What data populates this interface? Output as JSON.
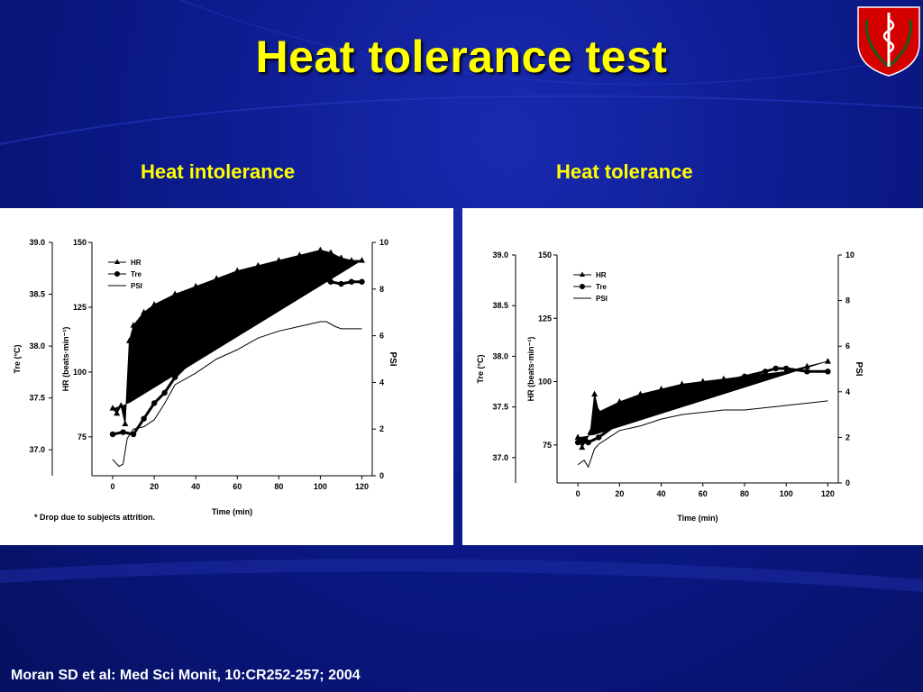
{
  "slide": {
    "title": "Heat tolerance test",
    "citation": "Moran SD et al: Med Sci Monit, 10:CR252-257; 2004",
    "colors": {
      "title": "#ffff00",
      "background": "#0c1a8c",
      "logo_red": "#d40000"
    }
  },
  "panels": {
    "left": {
      "heading": "Heat intolerance"
    },
    "right": {
      "heading": "Heat tolerance"
    }
  },
  "chart_data": [
    {
      "type": "line",
      "title": "Heat intolerance",
      "xlabel": "Time (min)",
      "xticks": [
        "0",
        "20",
        "40",
        "60",
        "80",
        "100",
        "120"
      ],
      "xlim": [
        -10,
        125
      ],
      "y_tre": {
        "label": "Tre (°C)",
        "ticks": [
          "37.0",
          "37.5",
          "38.0",
          "38.5",
          "39.0"
        ],
        "lim": [
          36.75,
          39.0
        ]
      },
      "y_hr": {
        "label": "HR (beats·min⁻¹)",
        "ticks": [
          "75",
          "100",
          "125",
          "150"
        ],
        "lim": [
          60,
          150
        ]
      },
      "y_psi": {
        "label": "PSI",
        "ticks": [
          "0",
          "2",
          "4",
          "6",
          "8",
          "10"
        ],
        "lim": [
          0,
          10
        ]
      },
      "legend": [
        "HR",
        "Tre",
        "PSI"
      ],
      "legend_position": "top-left",
      "annotations": [
        {
          "text": "*",
          "x": 107
        }
      ],
      "footnote": "* Drop due to subjects attrition.",
      "series": [
        {
          "name": "HR",
          "axis": "hr",
          "marker": "triangle",
          "x": [
            0,
            2,
            4,
            6,
            8,
            10,
            15,
            20,
            30,
            40,
            50,
            60,
            70,
            80,
            90,
            100,
            105,
            110,
            115,
            120
          ],
          "y": [
            86,
            84,
            87,
            80,
            112,
            118,
            123,
            126,
            130,
            133,
            136,
            139,
            141,
            143,
            145,
            147,
            146,
            144,
            143,
            143
          ]
        },
        {
          "name": "HR_lower_envelope",
          "axis": "hr",
          "fill": true,
          "x": [
            0,
            8,
            120
          ],
          "y": [
            86,
            88,
            143
          ]
        },
        {
          "name": "Tre",
          "axis": "tre",
          "marker": "circle",
          "x": [
            0,
            5,
            10,
            15,
            20,
            25,
            30,
            40,
            50,
            60,
            70,
            80,
            90,
            100,
            105,
            110,
            115,
            120
          ],
          "y": [
            37.15,
            37.17,
            37.15,
            37.3,
            37.45,
            37.55,
            37.7,
            37.9,
            38.05,
            38.2,
            38.35,
            38.5,
            38.6,
            38.65,
            38.62,
            38.6,
            38.62,
            38.62
          ]
        },
        {
          "name": "PSI",
          "axis": "psi",
          "marker": "none",
          "x": [
            0,
            3,
            5,
            7,
            10,
            15,
            20,
            25,
            30,
            40,
            50,
            60,
            70,
            80,
            90,
            100,
            103,
            107,
            110,
            115,
            120
          ],
          "y": [
            0.7,
            0.4,
            0.5,
            1.6,
            2.0,
            2.1,
            2.4,
            3.1,
            3.9,
            4.4,
            5.0,
            5.4,
            5.9,
            6.2,
            6.4,
            6.6,
            6.6,
            6.4,
            6.3,
            6.3,
            6.3
          ]
        }
      ]
    },
    {
      "type": "line",
      "title": "Heat tolerance",
      "xlabel": "Time (min)",
      "xticks": [
        "0",
        "20",
        "40",
        "60",
        "80",
        "100",
        "120"
      ],
      "xlim": [
        -10,
        125
      ],
      "y_tre": {
        "label": "Tre (°C)",
        "ticks": [
          "37.0",
          "37.5",
          "38.0",
          "38.5",
          "39.0"
        ],
        "lim": [
          36.75,
          39.0
        ]
      },
      "y_hr": {
        "label": "HR (beats·min⁻¹)",
        "ticks": [
          "75",
          "100",
          "125",
          "150"
        ],
        "lim": [
          60,
          150
        ]
      },
      "y_psi": {
        "label": "PSI",
        "ticks": [
          "0",
          "2",
          "4",
          "6",
          "8",
          "10"
        ],
        "lim": [
          0,
          10
        ]
      },
      "legend": [
        "HR",
        "Tre",
        "PSI"
      ],
      "legend_position": "top-left",
      "series": [
        {
          "name": "HR",
          "axis": "hr",
          "marker": "triangle",
          "x": [
            0,
            2,
            4,
            6,
            8,
            10,
            20,
            30,
            40,
            50,
            60,
            70,
            80,
            90,
            100,
            110,
            120
          ],
          "y": [
            78,
            74,
            77,
            80,
            95,
            88,
            92,
            95,
            97,
            99,
            100,
            101,
            102,
            103,
            104,
            106,
            108
          ]
        },
        {
          "name": "HR_lower_envelope",
          "axis": "hr",
          "fill": true,
          "x": [
            0,
            8,
            120
          ],
          "y": [
            78,
            79,
            108
          ]
        },
        {
          "name": "Tre",
          "axis": "tre",
          "marker": "circle",
          "x": [
            0,
            5,
            10,
            20,
            30,
            40,
            50,
            60,
            70,
            80,
            90,
            95,
            100,
            110,
            120
          ],
          "y": [
            37.15,
            37.15,
            37.2,
            37.35,
            37.45,
            37.55,
            37.62,
            37.7,
            37.75,
            37.8,
            37.85,
            37.88,
            37.88,
            37.85,
            37.85
          ]
        },
        {
          "name": "PSI",
          "axis": "psi",
          "marker": "none",
          "x": [
            0,
            3,
            5,
            8,
            10,
            15,
            20,
            30,
            40,
            50,
            60,
            70,
            80,
            90,
            100,
            110,
            120
          ],
          "y": [
            0.8,
            1.0,
            0.7,
            1.5,
            1.7,
            2.0,
            2.3,
            2.5,
            2.8,
            3.0,
            3.1,
            3.2,
            3.2,
            3.3,
            3.4,
            3.5,
            3.6
          ]
        }
      ]
    }
  ]
}
